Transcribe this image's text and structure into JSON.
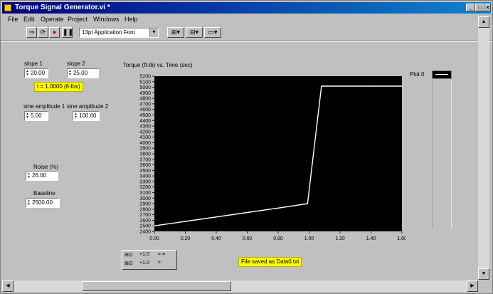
{
  "window": {
    "title": "Torque Signal Generator.vi *"
  },
  "menu": [
    "File",
    "Edit",
    "Operate",
    "Project",
    "Windows",
    "Help"
  ],
  "toolbar": {
    "font": "13pt Application Font"
  },
  "controls": {
    "slope1": {
      "label": "slope 1",
      "value": "20.00"
    },
    "slope2": {
      "label": "slope 2",
      "value": "25.00"
    },
    "formula": "t = 1.0000 (ft-lbs)",
    "sine_amp1": {
      "label": "sine amplitude 1",
      "value": "5.00"
    },
    "sine_amp2": {
      "label": "sine amplitude 2",
      "value": "100.00"
    },
    "noise": {
      "label": "Noise (%)",
      "value": "26.00"
    },
    "baseline": {
      "label": "Baseline",
      "value": "2500.00"
    }
  },
  "plot_legend": {
    "label": "Plot 0"
  },
  "status": {
    "message": "File saved as Data0.txt"
  },
  "colors": {
    "plot_bg": "#000000",
    "trace": "#ffffff",
    "highlight": "#ffff00",
    "titlebar": "#00007f"
  },
  "chart_data": {
    "type": "line",
    "title": "Torque (ft-lb) vs. Time (sec)",
    "xlabel": "",
    "ylabel": "",
    "xlim": [
      0,
      1.6
    ],
    "ylim": [
      2400,
      5200
    ],
    "x_ticks": [
      "0.00",
      "0.20",
      "0.40",
      "0.60",
      "0.80",
      "1.00",
      "1.20",
      "1.40",
      "1.60"
    ],
    "y_ticks": [
      "2400",
      "2500",
      "2600",
      "2700",
      "2800",
      "2900",
      "3000",
      "3100",
      "3200",
      "3300",
      "3400",
      "3500",
      "3600",
      "3700",
      "3800",
      "3900",
      "4000",
      "4100",
      "4200",
      "4300",
      "4400",
      "4500",
      "4600",
      "4700",
      "4800",
      "4900",
      "5000",
      "5100",
      "5200"
    ],
    "series": [
      {
        "x": [
          0.0,
          0.2,
          0.4,
          0.6,
          0.8,
          0.99,
          1.08,
          1.2,
          1.4,
          1.6
        ],
        "y": [
          2500,
          2580,
          2660,
          2740,
          2820,
          2900,
          5020,
          5020,
          5020,
          5020
        ]
      }
    ],
    "grid": false
  }
}
